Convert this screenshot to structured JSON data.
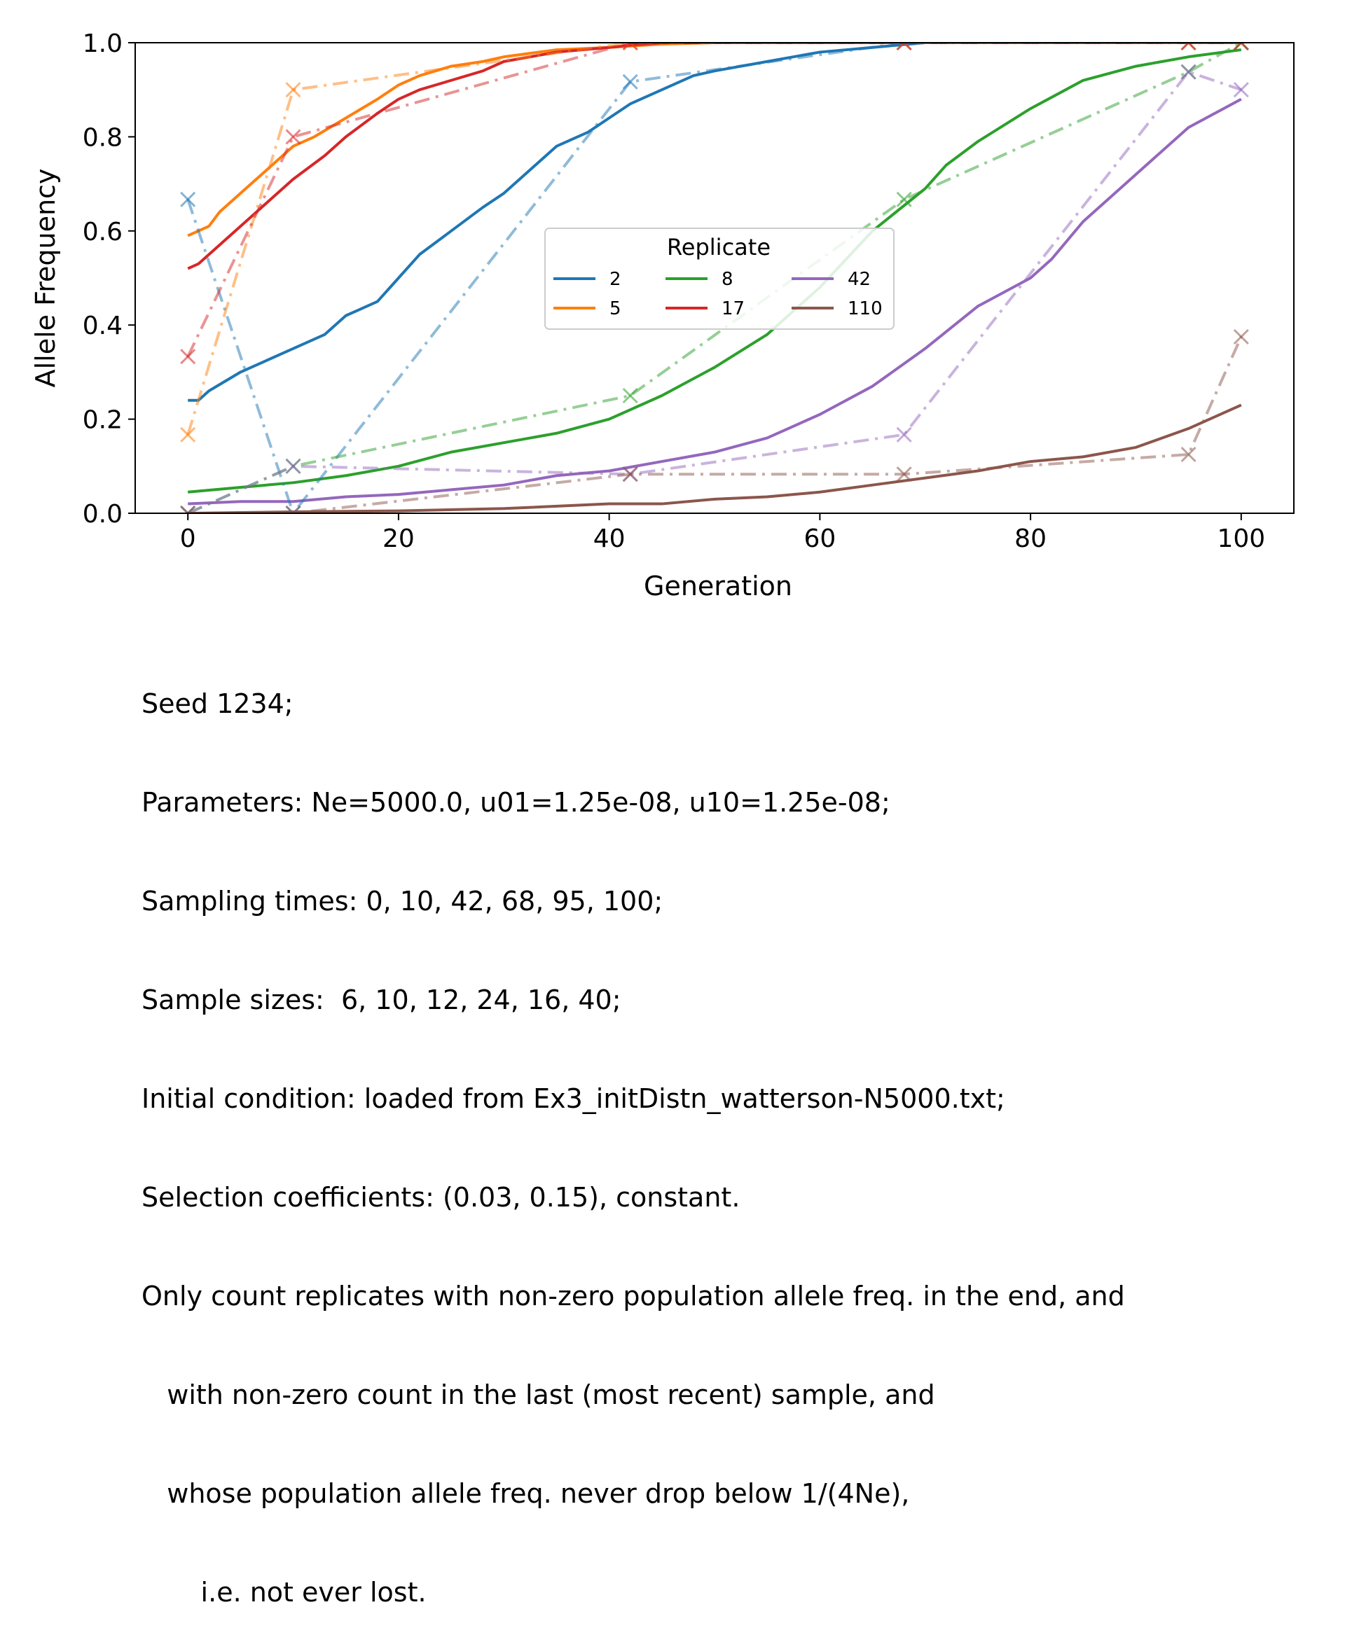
{
  "chart_data": {
    "type": "line",
    "xlabel": "Generation",
    "ylabel": "Allele Frequency",
    "xlim": [
      -5,
      105
    ],
    "ylim": [
      0.0,
      1.0
    ],
    "xticks": [
      0,
      20,
      40,
      60,
      80,
      100
    ],
    "xtick_labels": [
      "0",
      "20",
      "40",
      "60",
      "80",
      "100"
    ],
    "yticks": [
      0.0,
      0.2,
      0.4,
      0.6,
      0.8,
      1.0
    ],
    "ytick_labels": [
      "0.0",
      "0.2",
      "0.4",
      "0.6",
      "0.8",
      "1.0"
    ],
    "grid": false,
    "legend": {
      "title": "Replicate",
      "placement": "center",
      "columns": 3
    },
    "sampling_times": [
      0,
      10,
      42,
      68,
      95,
      100
    ],
    "series": [
      {
        "name": "2",
        "color": "#1f77b4",
        "trajectory": {
          "x": [
            0,
            1,
            2,
            5,
            8,
            10,
            13,
            15,
            18,
            20,
            22,
            25,
            28,
            30,
            33,
            35,
            38,
            40,
            42,
            45,
            48,
            50,
            55,
            60,
            65,
            70,
            75,
            80,
            85,
            90,
            95,
            100
          ],
          "y": [
            0.24,
            0.24,
            0.26,
            0.3,
            0.33,
            0.35,
            0.38,
            0.42,
            0.45,
            0.5,
            0.55,
            0.6,
            0.65,
            0.68,
            0.74,
            0.78,
            0.81,
            0.84,
            0.87,
            0.9,
            0.93,
            0.94,
            0.96,
            0.98,
            0.99,
            1.0,
            1.0,
            1.0,
            1.0,
            1.0,
            1.0,
            1.0
          ]
        },
        "samples": [
          0.667,
          0.0,
          0.917,
          1.0,
          1.0,
          1.0
        ]
      },
      {
        "name": "5",
        "color": "#ff7f0e",
        "trajectory": {
          "x": [
            0,
            1,
            2,
            3,
            5,
            8,
            10,
            12,
            15,
            18,
            20,
            22,
            25,
            28,
            30,
            35,
            40,
            45,
            50,
            60,
            70,
            80,
            90,
            100
          ],
          "y": [
            0.59,
            0.6,
            0.61,
            0.64,
            0.68,
            0.74,
            0.78,
            0.8,
            0.84,
            0.88,
            0.91,
            0.93,
            0.95,
            0.96,
            0.97,
            0.985,
            0.99,
            0.997,
            1.0,
            1.0,
            1.0,
            1.0,
            1.0,
            1.0
          ]
        },
        "samples": [
          0.167,
          0.9,
          1.0,
          1.0,
          1.0,
          1.0
        ]
      },
      {
        "name": "8",
        "color": "#2ca02c",
        "trajectory": {
          "x": [
            0,
            5,
            10,
            15,
            20,
            25,
            30,
            35,
            40,
            45,
            50,
            55,
            60,
            65,
            70,
            72,
            75,
            80,
            85,
            90,
            95,
            100
          ],
          "y": [
            0.045,
            0.055,
            0.065,
            0.08,
            0.1,
            0.13,
            0.15,
            0.17,
            0.2,
            0.25,
            0.31,
            0.38,
            0.48,
            0.6,
            0.69,
            0.74,
            0.79,
            0.86,
            0.92,
            0.95,
            0.97,
            0.985
          ]
        },
        "samples": [
          0.0,
          0.1,
          0.25,
          0.667,
          0.938,
          1.0
        ]
      },
      {
        "name": "17",
        "color": "#d62728",
        "trajectory": {
          "x": [
            0,
            1,
            3,
            5,
            8,
            10,
            13,
            15,
            18,
            20,
            22,
            25,
            28,
            30,
            35,
            40,
            42,
            45,
            50,
            60,
            70,
            80,
            90,
            100
          ],
          "y": [
            0.52,
            0.53,
            0.57,
            0.61,
            0.67,
            0.71,
            0.76,
            0.8,
            0.85,
            0.88,
            0.9,
            0.92,
            0.94,
            0.96,
            0.98,
            0.99,
            0.995,
            1.0,
            1.0,
            1.0,
            1.0,
            1.0,
            1.0,
            1.0
          ]
        },
        "samples": [
          0.333,
          0.8,
          1.0,
          1.0,
          1.0,
          1.0
        ]
      },
      {
        "name": "42",
        "color": "#9467bd",
        "trajectory": {
          "x": [
            0,
            5,
            10,
            15,
            20,
            25,
            30,
            35,
            40,
            45,
            50,
            55,
            60,
            65,
            70,
            75,
            80,
            82,
            85,
            90,
            95,
            100
          ],
          "y": [
            0.02,
            0.025,
            0.025,
            0.035,
            0.04,
            0.05,
            0.06,
            0.08,
            0.09,
            0.11,
            0.13,
            0.16,
            0.21,
            0.27,
            0.35,
            0.44,
            0.5,
            0.54,
            0.62,
            0.72,
            0.82,
            0.88
          ]
        },
        "samples": [
          0.0,
          0.1,
          0.083,
          0.167,
          0.938,
          0.9
        ]
      },
      {
        "name": "110",
        "color": "#8c564b",
        "trajectory": {
          "x": [
            0,
            10,
            20,
            30,
            40,
            45,
            50,
            55,
            60,
            65,
            70,
            75,
            80,
            85,
            90,
            95,
            100
          ],
          "y": [
            0.0,
            0.003,
            0.005,
            0.01,
            0.02,
            0.02,
            0.03,
            0.035,
            0.045,
            0.06,
            0.075,
            0.09,
            0.11,
            0.12,
            0.14,
            0.18,
            0.23
          ]
        },
        "samples": [
          0.0,
          0.0,
          0.083,
          0.083,
          0.125,
          0.375
        ]
      }
    ]
  },
  "caption_lines": [
    "Seed 1234;",
    "Parameters: Ne=5000.0, u01=1.25e-08, u10=1.25e-08;",
    "Sampling times: 0, 10, 42, 68, 95, 100;",
    "Sample sizes:  6, 10, 12, 24, 16, 40;",
    "Initial condition: loaded from Ex3_initDistn_watterson-N5000.txt;",
    "Selection coefficients: (0.03, 0.15), constant.",
    "Only count replicates with non-zero population allele freq. in the end, and",
    "   with non-zero count in the last (most recent) sample, and",
    "   whose population allele freq. never drop below 1/(4Ne),",
    "       i.e. not ever lost."
  ]
}
